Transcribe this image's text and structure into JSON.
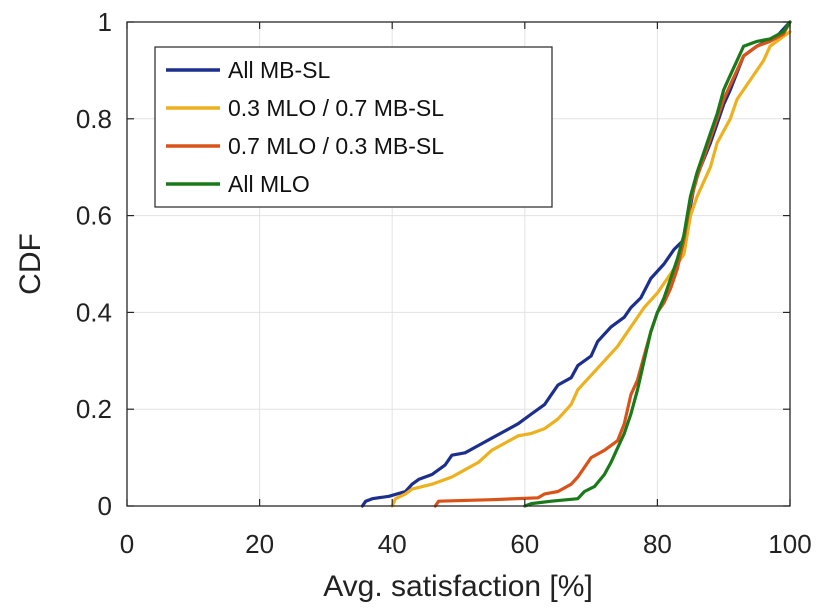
{
  "chart_data": {
    "type": "line",
    "title": "",
    "xlabel": "Avg. satisfaction [%]",
    "ylabel": "CDF",
    "xlim": [
      0,
      100
    ],
    "ylim": [
      0,
      1
    ],
    "grid": true,
    "legend_position": "top-left",
    "x_ticks": [
      {
        "value": 0,
        "label": "0"
      },
      {
        "value": 20,
        "label": "20"
      },
      {
        "value": 40,
        "label": "40"
      },
      {
        "value": 60,
        "label": "60"
      },
      {
        "value": 80,
        "label": "80"
      },
      {
        "value": 100,
        "label": "100"
      }
    ],
    "y_ticks": [
      {
        "value": 0,
        "label": "0"
      },
      {
        "value": 0.2,
        "label": "0.2"
      },
      {
        "value": 0.4,
        "label": "0.4"
      },
      {
        "value": 0.6,
        "label": "0.6"
      },
      {
        "value": 0.8,
        "label": "0.8"
      },
      {
        "value": 1,
        "label": "1"
      }
    ],
    "series": [
      {
        "name": "All MB-SL",
        "color": "#1c2f8c",
        "points": [
          [
            35.5,
            0
          ],
          [
            36,
            0.01
          ],
          [
            37,
            0.015
          ],
          [
            39.5,
            0.02
          ],
          [
            42,
            0.03
          ],
          [
            43,
            0.045
          ],
          [
            44,
            0.055
          ],
          [
            46,
            0.065
          ],
          [
            48,
            0.085
          ],
          [
            49,
            0.105
          ],
          [
            51,
            0.11
          ],
          [
            53,
            0.125
          ],
          [
            55,
            0.14
          ],
          [
            57,
            0.155
          ],
          [
            59,
            0.17
          ],
          [
            61,
            0.19
          ],
          [
            63,
            0.21
          ],
          [
            64,
            0.23
          ],
          [
            65,
            0.25
          ],
          [
            67,
            0.265
          ],
          [
            68,
            0.29
          ],
          [
            70,
            0.31
          ],
          [
            71,
            0.34
          ],
          [
            73,
            0.37
          ],
          [
            75,
            0.39
          ],
          [
            76,
            0.41
          ],
          [
            77.5,
            0.43
          ],
          [
            79,
            0.47
          ],
          [
            81,
            0.5
          ],
          [
            82.5,
            0.53
          ],
          [
            84,
            0.55
          ],
          [
            84.5,
            0.58
          ],
          [
            85,
            0.62
          ],
          [
            85.8,
            0.68
          ],
          [
            86.5,
            0.7
          ],
          [
            88,
            0.75
          ],
          [
            89,
            0.79
          ],
          [
            90,
            0.83
          ],
          [
            91,
            0.86
          ],
          [
            93,
            0.93
          ],
          [
            95,
            0.95
          ],
          [
            98,
            0.97
          ],
          [
            100,
            1
          ]
        ]
      },
      {
        "name": "0.3 MLO / 0.7 MB-SL",
        "color": "#edb120",
        "points": [
          [
            40,
            0
          ],
          [
            40.5,
            0.015
          ],
          [
            42,
            0.025
          ],
          [
            43,
            0.035
          ],
          [
            46,
            0.045
          ],
          [
            49,
            0.06
          ],
          [
            51,
            0.075
          ],
          [
            53,
            0.09
          ],
          [
            55,
            0.115
          ],
          [
            57,
            0.13
          ],
          [
            59,
            0.145
          ],
          [
            61,
            0.15
          ],
          [
            63,
            0.16
          ],
          [
            65,
            0.18
          ],
          [
            67,
            0.21
          ],
          [
            68,
            0.24
          ],
          [
            70,
            0.27
          ],
          [
            72,
            0.3
          ],
          [
            74,
            0.33
          ],
          [
            76,
            0.37
          ],
          [
            78,
            0.41
          ],
          [
            80,
            0.44
          ],
          [
            82,
            0.48
          ],
          [
            84,
            0.52
          ],
          [
            85,
            0.6
          ],
          [
            86,
            0.64
          ],
          [
            87,
            0.67
          ],
          [
            88,
            0.7
          ],
          [
            89,
            0.75
          ],
          [
            91,
            0.8
          ],
          [
            92,
            0.84
          ],
          [
            94,
            0.88
          ],
          [
            96,
            0.92
          ],
          [
            97,
            0.95
          ],
          [
            99,
            0.97
          ],
          [
            100,
            0.98
          ]
        ]
      },
      {
        "name": "0.7 MLO / 0.3 MB-SL",
        "color": "#d95319",
        "points": [
          [
            46.5,
            0
          ],
          [
            47,
            0.01
          ],
          [
            55,
            0.013
          ],
          [
            62,
            0.017
          ],
          [
            63,
            0.025
          ],
          [
            65,
            0.03
          ],
          [
            67,
            0.045
          ],
          [
            68,
            0.06
          ],
          [
            69,
            0.08
          ],
          [
            70,
            0.1
          ],
          [
            72,
            0.115
          ],
          [
            74,
            0.135
          ],
          [
            75,
            0.17
          ],
          [
            76,
            0.23
          ],
          [
            77,
            0.26
          ],
          [
            78,
            0.31
          ],
          [
            79,
            0.36
          ],
          [
            80,
            0.4
          ],
          [
            81,
            0.42
          ],
          [
            82,
            0.45
          ],
          [
            83,
            0.49
          ],
          [
            84,
            0.55
          ],
          [
            85,
            0.63
          ],
          [
            86,
            0.68
          ],
          [
            87,
            0.72
          ],
          [
            88,
            0.76
          ],
          [
            89,
            0.8
          ],
          [
            90,
            0.84
          ],
          [
            91,
            0.87
          ],
          [
            92,
            0.9
          ],
          [
            93,
            0.93
          ],
          [
            95,
            0.95
          ],
          [
            97,
            0.96
          ],
          [
            99,
            0.975
          ],
          [
            100,
            1
          ]
        ]
      },
      {
        "name": "All MLO",
        "color": "#1a7a1a",
        "points": [
          [
            60,
            0
          ],
          [
            61,
            0.005
          ],
          [
            64,
            0.01
          ],
          [
            68,
            0.015
          ],
          [
            69,
            0.03
          ],
          [
            70.5,
            0.04
          ],
          [
            72,
            0.065
          ],
          [
            73,
            0.09
          ],
          [
            74,
            0.12
          ],
          [
            75,
            0.15
          ],
          [
            76,
            0.19
          ],
          [
            77,
            0.24
          ],
          [
            78,
            0.3
          ],
          [
            79,
            0.36
          ],
          [
            80,
            0.4
          ],
          [
            81,
            0.43
          ],
          [
            82,
            0.47
          ],
          [
            83,
            0.51
          ],
          [
            84,
            0.56
          ],
          [
            85,
            0.64
          ],
          [
            86,
            0.69
          ],
          [
            87,
            0.73
          ],
          [
            88,
            0.77
          ],
          [
            89,
            0.81
          ],
          [
            90,
            0.86
          ],
          [
            91,
            0.89
          ],
          [
            92,
            0.92
          ],
          [
            93,
            0.95
          ],
          [
            95,
            0.96
          ],
          [
            97,
            0.965
          ],
          [
            99,
            0.98
          ],
          [
            100,
            1
          ]
        ]
      }
    ]
  }
}
